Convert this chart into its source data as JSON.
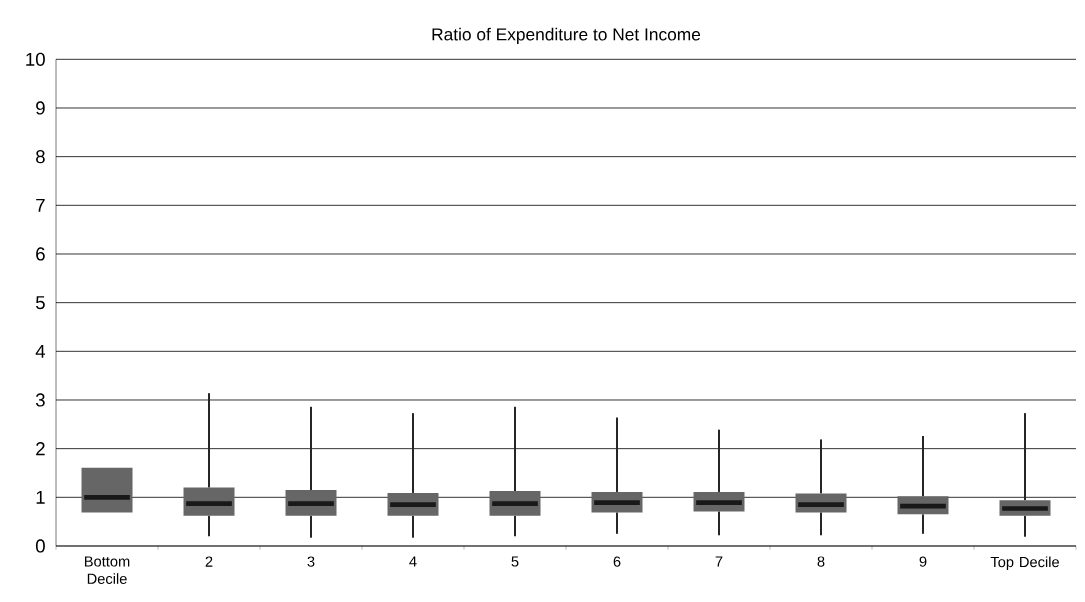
{
  "chart_data": {
    "type": "box",
    "title": "Ratio of Expenditure to Net Income",
    "categories": [
      "Bottom Decile",
      "2",
      "3",
      "4",
      "5",
      "6",
      "7",
      "8",
      "9",
      "Top Decile"
    ],
    "boxes": [
      {
        "low": 0.69,
        "q1": 0.69,
        "median": 1.0,
        "q3": 1.61,
        "high": 1.61
      },
      {
        "low": 0.2,
        "q1": 0.62,
        "median": 0.87,
        "q3": 1.2,
        "high": 3.14
      },
      {
        "low": 0.17,
        "q1": 0.62,
        "median": 0.87,
        "q3": 1.15,
        "high": 2.86
      },
      {
        "low": 0.17,
        "q1": 0.62,
        "median": 0.85,
        "q3": 1.09,
        "high": 2.73
      },
      {
        "low": 0.2,
        "q1": 0.62,
        "median": 0.87,
        "q3": 1.13,
        "high": 2.86
      },
      {
        "low": 0.25,
        "q1": 0.69,
        "median": 0.89,
        "q3": 1.11,
        "high": 2.64
      },
      {
        "low": 0.22,
        "q1": 0.71,
        "median": 0.89,
        "q3": 1.11,
        "high": 2.39
      },
      {
        "low": 0.22,
        "q1": 0.69,
        "median": 0.85,
        "q3": 1.08,
        "high": 2.19
      },
      {
        "low": 0.25,
        "q1": 0.65,
        "median": 0.82,
        "q3": 1.02,
        "high": 2.26
      },
      {
        "low": 0.19,
        "q1": 0.62,
        "median": 0.77,
        "q3": 0.94,
        "high": 2.73
      }
    ],
    "color": "#666666",
    "ylim": [
      0,
      10
    ],
    "yticks": [
      0,
      1,
      2,
      3,
      4,
      5,
      6,
      7,
      8,
      9,
      10
    ],
    "grid": "y"
  }
}
